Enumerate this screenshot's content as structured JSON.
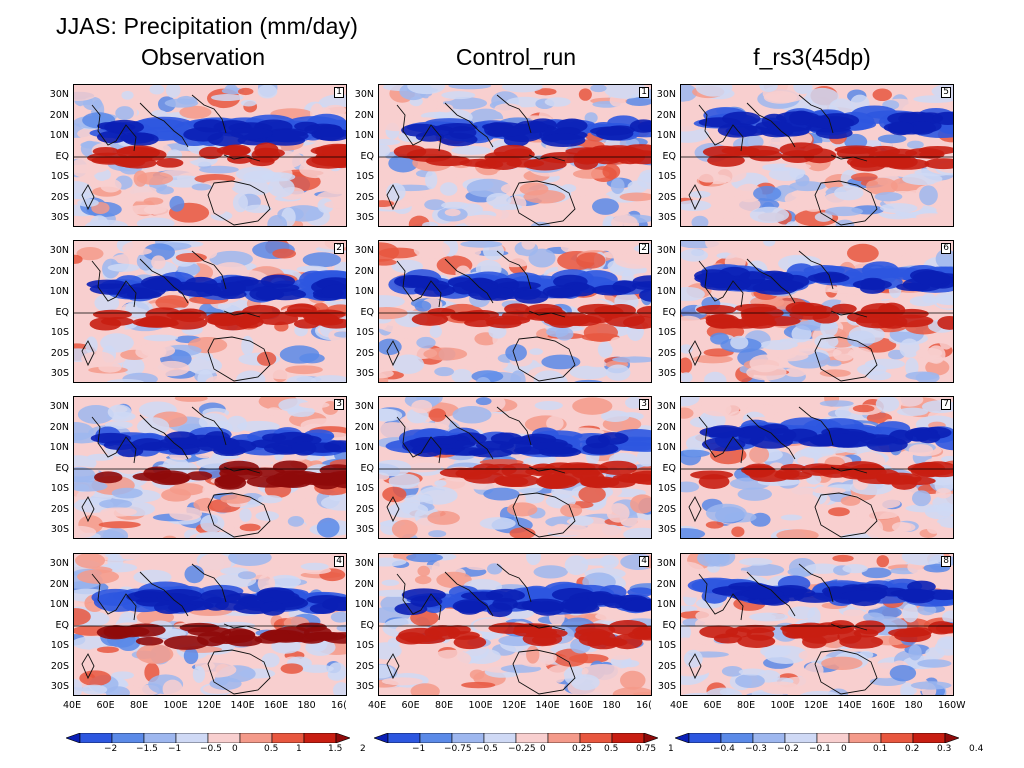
{
  "title": "JJAS: Precipitation (mm/day)",
  "columns": [
    {
      "id": "obs",
      "title": "Observation",
      "panels": [
        "1",
        "2",
        "3",
        "4"
      ]
    },
    {
      "id": "ctl",
      "title": "Control_run",
      "panels": [
        "1",
        "2",
        "3",
        "4"
      ]
    },
    {
      "id": "exp",
      "title": "f_rs3(45dp)",
      "panels": [
        "5",
        "6",
        "7",
        "8"
      ]
    }
  ],
  "lat_labels": [
    "30N",
    "20N",
    "10N",
    "EQ",
    "10S",
    "20S",
    "30S"
  ],
  "lon_labels": {
    "col1": [
      "40E",
      "60E",
      "80E",
      "100E",
      "120E",
      "140E",
      "160E",
      "180",
      "16("
    ],
    "col2": [
      "40E",
      "60E",
      "80E",
      "100E",
      "120E",
      "140E",
      "160E",
      "180",
      "16("
    ],
    "col3": [
      "40E",
      "60E",
      "80E",
      "100E",
      "120E",
      "140E",
      "160E",
      "180",
      "160W"
    ]
  },
  "colorbars": [
    {
      "labels": [
        "−2",
        "−1.5",
        "−1",
        "−0.5",
        "0",
        "0.5",
        "1",
        "1.5",
        "2"
      ],
      "colors": [
        "#0a1fb5",
        "#2d57e0",
        "#5b8ae8",
        "#9eb7ef",
        "#cfd9f5",
        "#f8cfcf",
        "#f49a8a",
        "#e8573f",
        "#c81e12",
        "#8f0a0a"
      ]
    },
    {
      "labels": [
        "−1",
        "−0.75",
        "−0.5",
        "−0.25",
        "0",
        "0.25",
        "0.5",
        "0.75",
        "1"
      ],
      "colors": [
        "#0a1fb5",
        "#2d57e0",
        "#5b8ae8",
        "#9eb7ef",
        "#cfd9f5",
        "#f8cfcf",
        "#f49a8a",
        "#e8573f",
        "#c81e12",
        "#8f0a0a"
      ]
    },
    {
      "labels": [
        "−0.4",
        "−0.3",
        "−0.2",
        "−0.1",
        "0",
        "0.1",
        "0.2",
        "0.3",
        "0.4"
      ],
      "colors": [
        "#0a1fb5",
        "#2d57e0",
        "#5b8ae8",
        "#9eb7ef",
        "#cfd9f5",
        "#f8cfcf",
        "#f49a8a",
        "#e8573f",
        "#c81e12",
        "#8f0a0a"
      ]
    }
  ]
}
